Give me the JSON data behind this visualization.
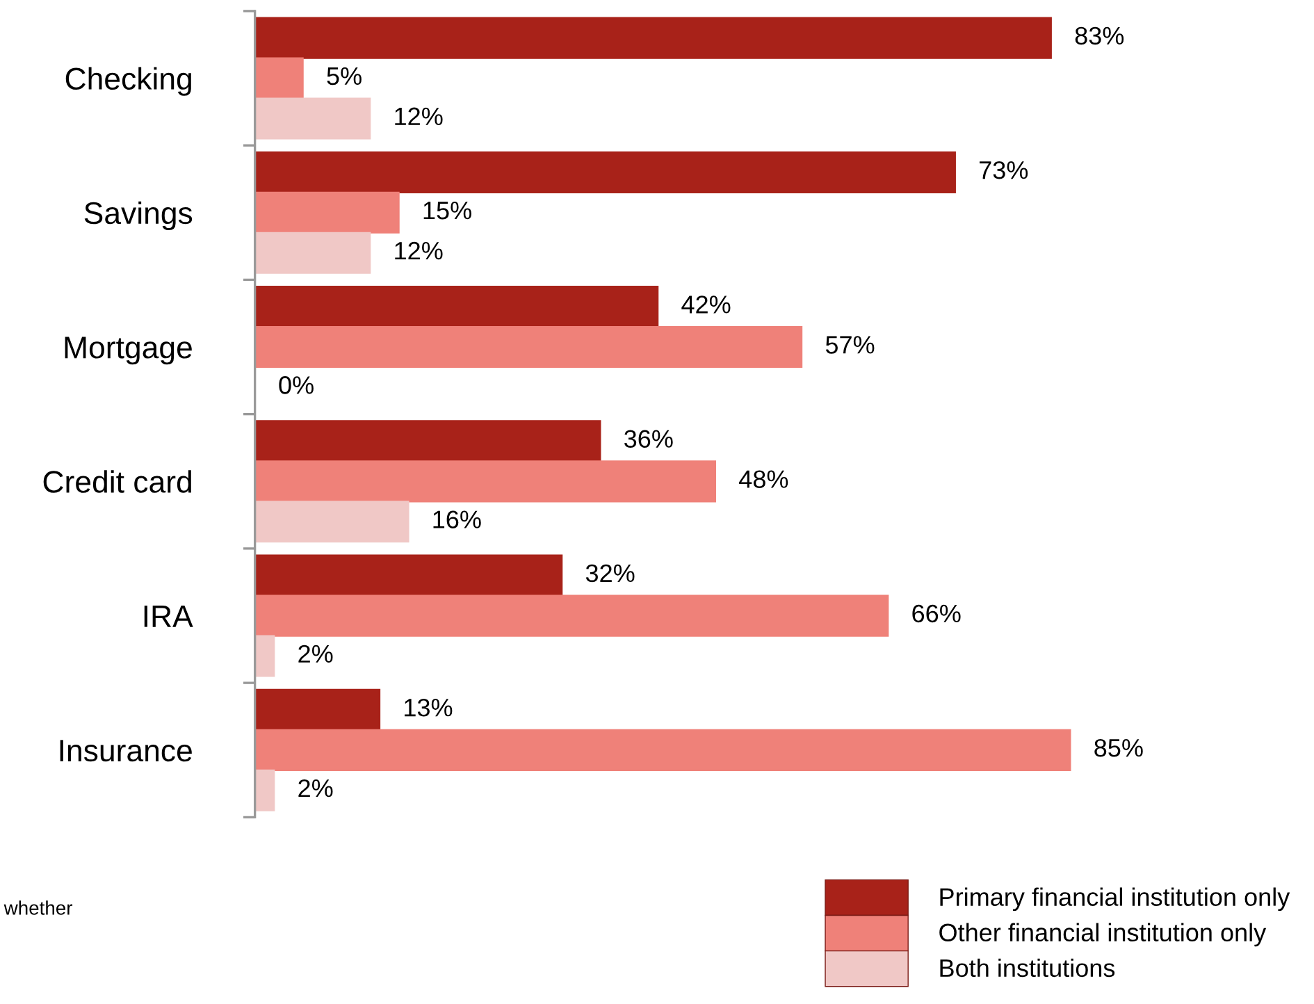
{
  "chart_data": {
    "type": "bar",
    "orientation": "horizontal",
    "categories": [
      "Checking",
      "Savings",
      "Mortgage",
      "Credit card",
      "IRA",
      "Insurance"
    ],
    "series": [
      {
        "name": "Primary financial institution only",
        "color": "#a82219",
        "values": [
          83,
          73,
          42,
          36,
          32,
          13
        ],
        "value_labels": [
          "83%",
          "73%",
          "42%",
          "36%",
          "32%",
          "13%"
        ]
      },
      {
        "name": "Other financial institution only",
        "color": "#ef8179",
        "values": [
          5,
          15,
          57,
          48,
          66,
          85
        ],
        "value_labels": [
          "5%",
          "15%",
          "57%",
          "48%",
          "66%",
          "85%"
        ]
      },
      {
        "name": "Both institutions",
        "color": "#f0c8c6",
        "values": [
          12,
          12,
          0,
          16,
          2,
          2
        ],
        "value_labels": [
          "12%",
          "12%",
          "0%",
          "16%",
          "2%",
          "2%"
        ]
      }
    ],
    "legend": "bottom right",
    "annotations": [
      "whether"
    ]
  }
}
